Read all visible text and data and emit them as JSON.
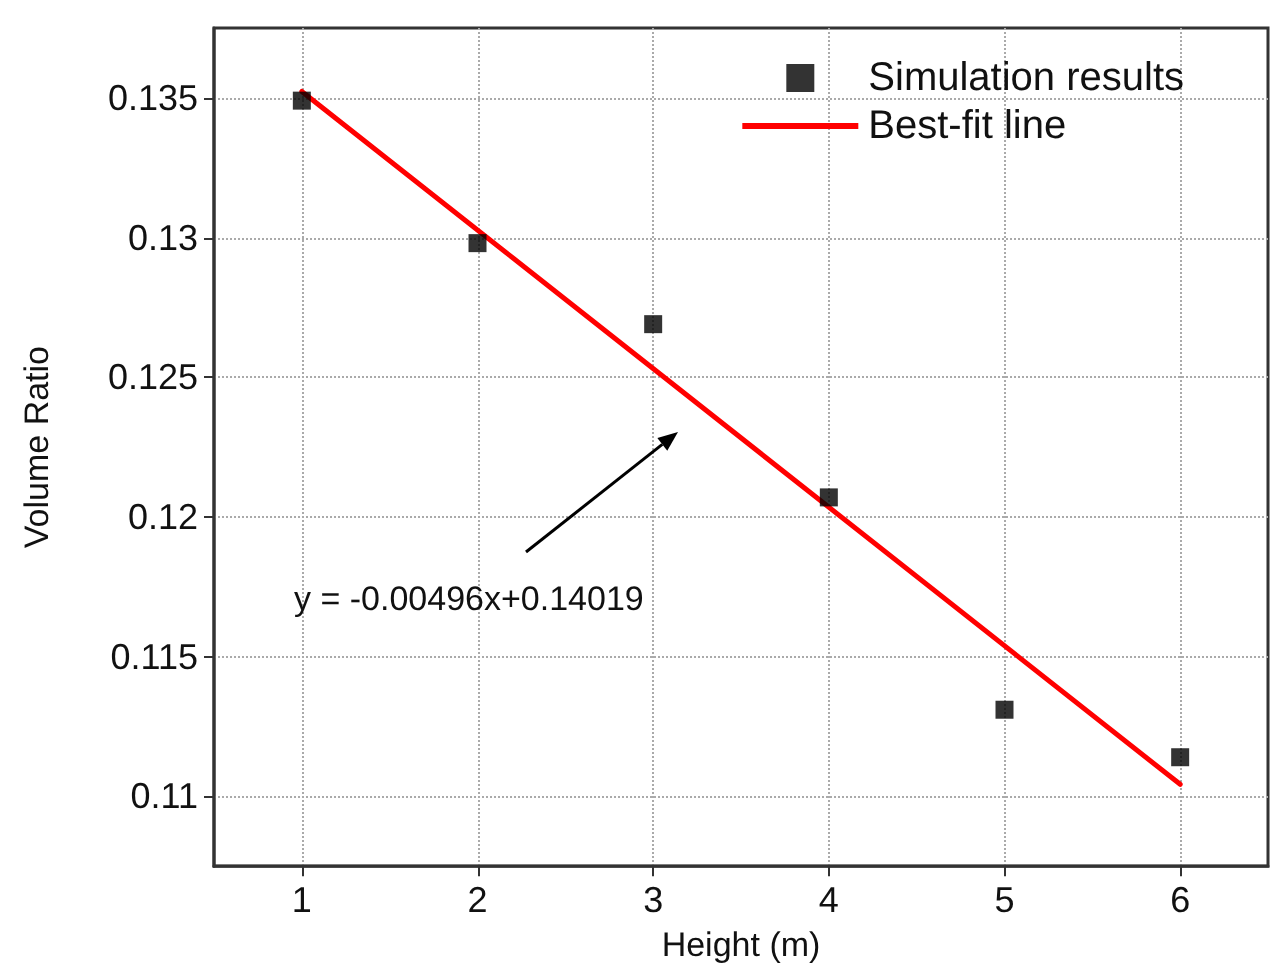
{
  "chart_data": {
    "type": "scatter",
    "xlabel": "Height (m)",
    "ylabel": "Volume Ratio",
    "xlim": [
      0.5,
      6.5
    ],
    "xticks": [
      1,
      2,
      3,
      4,
      5,
      6
    ],
    "ylim": [
      0.1075,
      0.1375
    ],
    "yticks": [
      0.11,
      0.115,
      0.12,
      0.125,
      0.13,
      0.135
    ],
    "grid": true,
    "legend": "top right",
    "marker": "square",
    "x": [
      1,
      2,
      3,
      4,
      5,
      6
    ],
    "series": [
      {
        "name": "Simulation results",
        "color": "#000000",
        "values": [
          0.1349,
          0.1298,
          0.1269,
          0.1207,
          0.1131,
          0.1114
        ]
      },
      {
        "name": "Best-fit line",
        "type": "line",
        "color": "#ff0000",
        "x": [
          1,
          6
        ],
        "values": [
          0.13523,
          0.11043
        ],
        "marker": "none",
        "line_style": "solid"
      }
    ],
    "annotations": [
      "y = -0.00496x+0.14019"
    ]
  }
}
